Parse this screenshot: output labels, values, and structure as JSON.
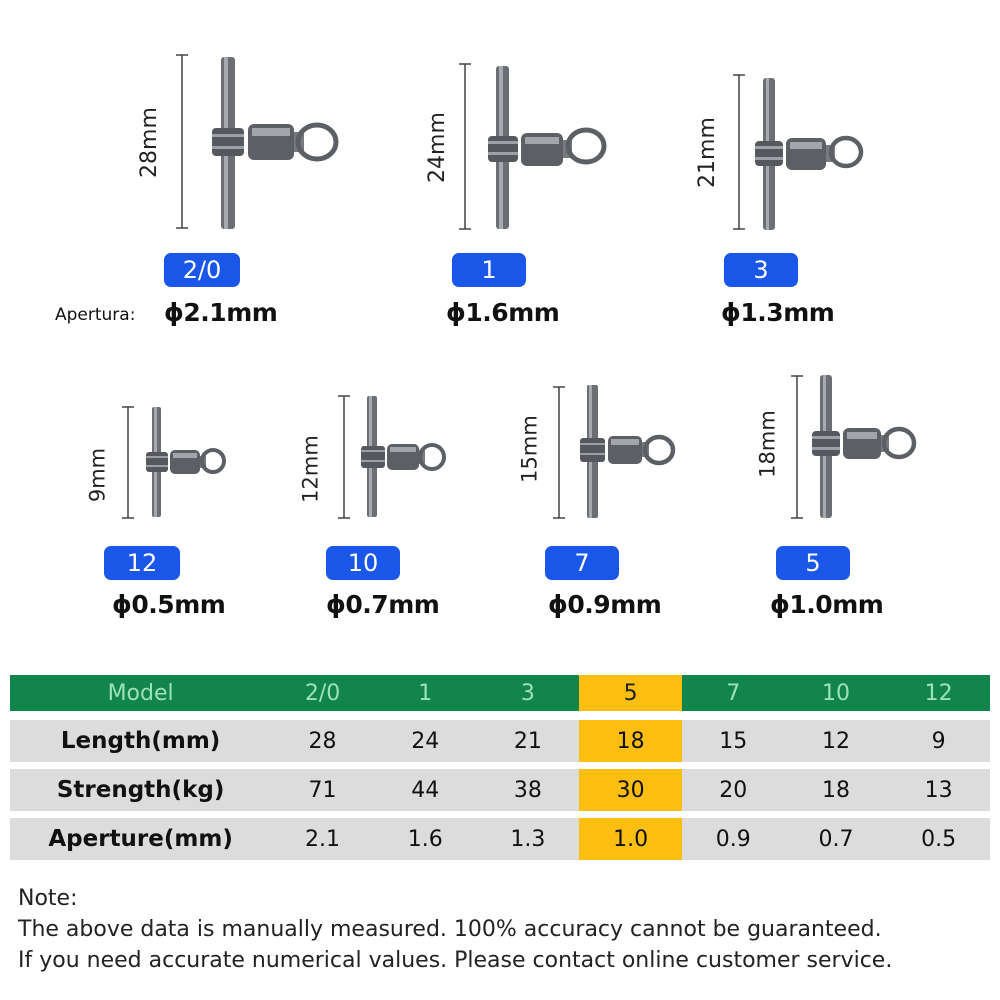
{
  "products": [
    {
      "model": "2/0",
      "length": "28mm",
      "aperture": "ϕ2.1mm",
      "aperture_prefix": "Apertura:"
    },
    {
      "model": "1",
      "length": "24mm",
      "aperture": "ϕ1.6mm"
    },
    {
      "model": "3",
      "length": "21mm",
      "aperture": "ϕ1.3mm"
    },
    {
      "model": "12",
      "length": "9mm",
      "aperture": "ϕ0.5mm"
    },
    {
      "model": "10",
      "length": "12mm",
      "aperture": "ϕ0.7mm"
    },
    {
      "model": "7",
      "length": "15mm",
      "aperture": "ϕ0.9mm"
    },
    {
      "model": "5",
      "length": "18mm",
      "aperture": "ϕ1.0mm"
    }
  ],
  "table": {
    "header": {
      "label": "Model",
      "values": [
        "2/0",
        "1",
        "3",
        "5",
        "7",
        "10",
        "12"
      ]
    },
    "rows": [
      {
        "label": "Length(mm)",
        "values": [
          "28",
          "24",
          "21",
          "18",
          "15",
          "12",
          "9"
        ]
      },
      {
        "label": "Strength(kg)",
        "values": [
          "71",
          "44",
          "38",
          "30",
          "20",
          "18",
          "13"
        ]
      },
      {
        "label": "Aperture(mm)",
        "values": [
          "2.1",
          "1.6",
          "1.3",
          "1.0",
          "0.9",
          "0.7",
          "0.5"
        ]
      }
    ],
    "highlight_color": "#fbbe11",
    "header_color": "#11854b"
  },
  "notes": {
    "title": "Note:",
    "line1": "The above data is manually measured. 100% accuracy cannot be guaranteed.",
    "line2": "If you need accurate numerical values. Please contact online customer service."
  },
  "colors": {
    "badge": "#1a56e8",
    "row_bg": "#dcdcdc"
  },
  "icons": [
    "t-swivel-icon"
  ]
}
